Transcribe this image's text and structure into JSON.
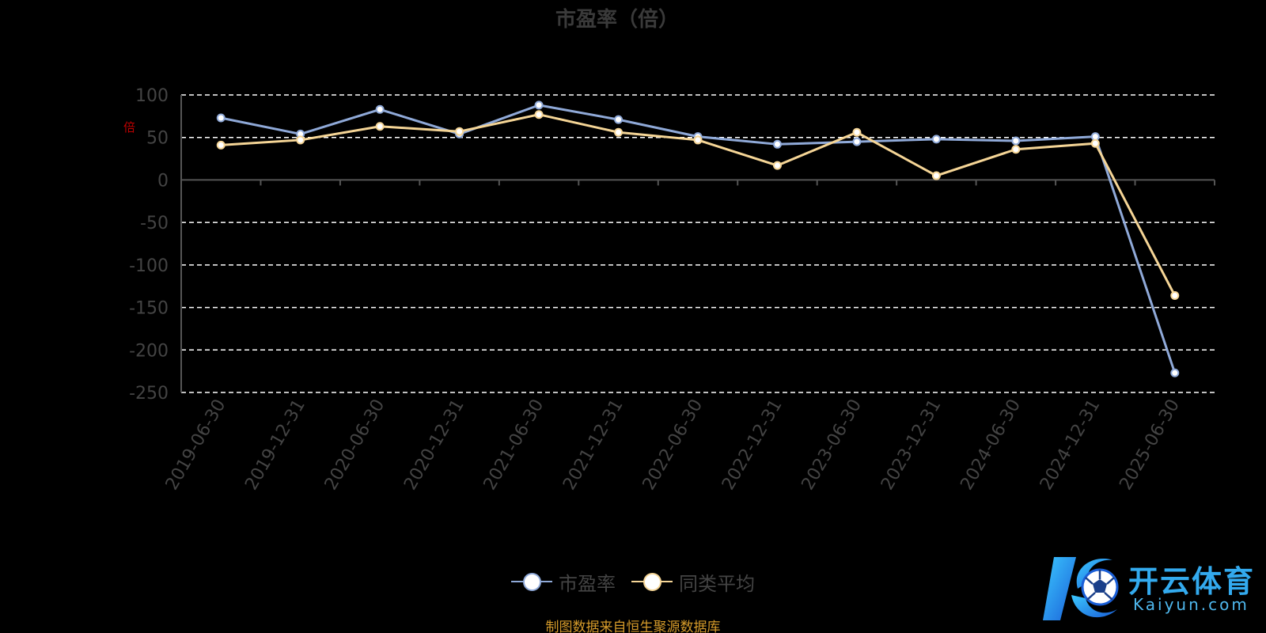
{
  "chart_data": {
    "type": "line",
    "title": "市盈率（倍）",
    "ylabel": "倍",
    "ylim": [
      -250,
      100
    ],
    "yticks": [
      100,
      50,
      0,
      -50,
      -100,
      -150,
      -200,
      -250
    ],
    "grid": true,
    "legend_position": "bottom",
    "categories": [
      "2019-06-30",
      "2019-12-31",
      "2020-06-30",
      "2020-12-31",
      "2021-06-30",
      "2021-12-31",
      "2022-06-30",
      "2022-12-31",
      "2023-06-30",
      "2023-12-31",
      "2024-06-30",
      "2024-12-31",
      "2025-06-30"
    ],
    "series": [
      {
        "name": "市盈率",
        "color": "#8fa9d8",
        "values": [
          73,
          54,
          83,
          54,
          88,
          71,
          51,
          42,
          45,
          48,
          46,
          51,
          -227
        ]
      },
      {
        "name": "同类平均",
        "color": "#f5d596",
        "values": [
          41,
          47,
          63,
          57,
          77,
          56,
          47,
          17,
          56,
          5,
          36,
          43,
          -136
        ]
      }
    ]
  },
  "source": "制图数据来自恒生聚源数据库",
  "logo": {
    "main": "开云体育",
    "sub": "Kaiyun.com"
  },
  "colors": {
    "axis": "#555555",
    "tick_label": "#444444",
    "grid": "#ffffff",
    "title": "#3a3a3a"
  }
}
